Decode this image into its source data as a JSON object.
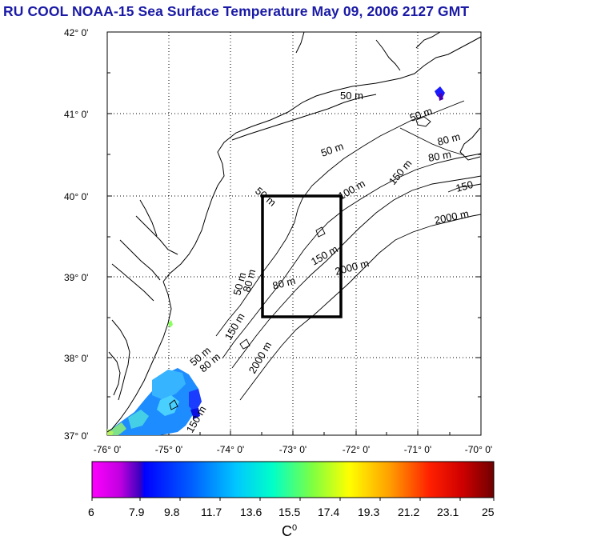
{
  "title": "RU COOL  NOAA-15 Sea Surface Temperature May 09, 2006 2127 GMT",
  "lat_labels": [
    "42° 0'",
    "41° 0'",
    "40° 0'",
    "39° 0'",
    "38° 0'",
    "37° 0'"
  ],
  "lon_labels": [
    "-76° 0'",
    "-75° 0'",
    "-74° 0'",
    "-73° 0'",
    "-72° 0'",
    "-71° 0'",
    "-70° 0'"
  ],
  "contour_labels": [
    "50 m",
    "50 m",
    "50 m",
    "80 m",
    "80 m",
    "150 m",
    "150",
    "2000 m",
    "50 m",
    "100 m",
    "150 m",
    "2000 m",
    "50 m",
    "80 m",
    "80 m",
    "150 m",
    "50 m",
    "80 m",
    "2000 m",
    "150 m"
  ],
  "colorbar": {
    "ticks": [
      "6",
      "7.9",
      "9.8",
      "11.7",
      "13.6",
      "15.5",
      "17.4",
      "19.3",
      "21.2",
      "23.1",
      "25"
    ],
    "unit": "C",
    "unit_sup": "0"
  },
  "colors": {
    "title": "#1a1aa6",
    "box": "#000000"
  }
}
